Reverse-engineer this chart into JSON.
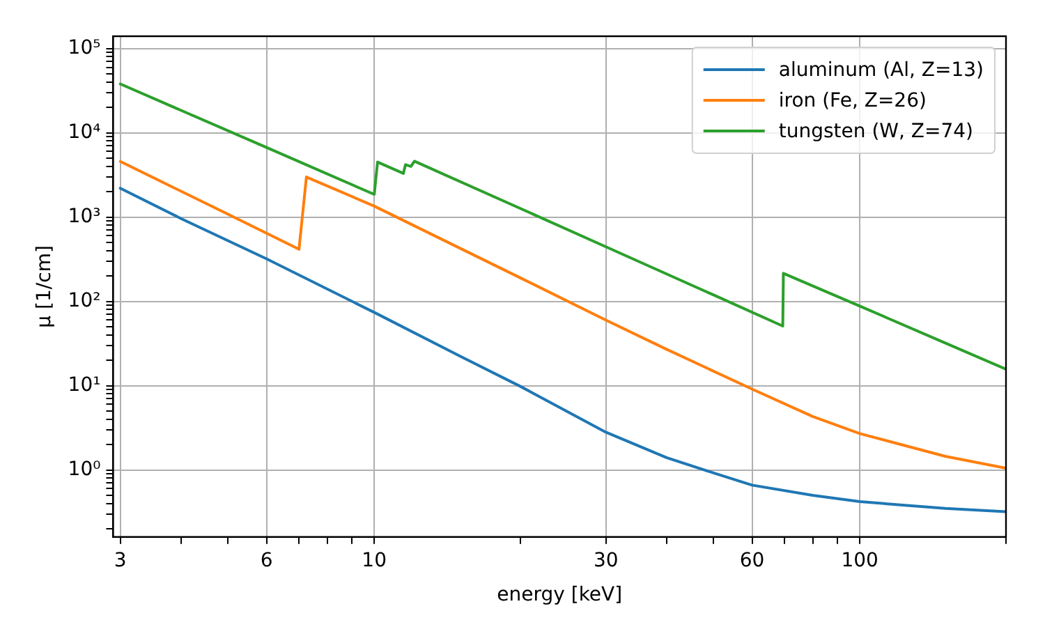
{
  "chart_data": {
    "type": "line",
    "xlabel": "energy [keV]",
    "ylabel": "μ [1/cm]",
    "log": "xy",
    "grid": true,
    "legend": "top right",
    "marker": "none",
    "line_style": "solid",
    "xlim": [
      2.9,
      200
    ],
    "ylim": [
      0.16,
      140000
    ],
    "xticks": [
      3,
      {
        "value": 4,
        "label": null
      },
      {
        "value": 5,
        "label": null
      },
      6,
      {
        "value": 7,
        "label": null
      },
      {
        "value": 8,
        "label": null
      },
      {
        "value": 9,
        "label": null
      },
      10,
      {
        "value": 20,
        "label": null
      },
      30,
      {
        "value": 40,
        "label": null
      },
      {
        "value": 50,
        "label": null
      },
      60,
      {
        "value": 70,
        "label": null
      },
      {
        "value": 80,
        "label": null
      },
      {
        "value": 90,
        "label": null
      },
      100,
      {
        "value": 200,
        "label": null
      }
    ],
    "yticks": [
      {
        "value": 0.2,
        "label": null
      },
      {
        "value": 0.3,
        "label": null
      },
      {
        "value": 0.4,
        "label": null
      },
      {
        "value": 0.5,
        "label": null
      },
      {
        "value": 0.6,
        "label": null
      },
      {
        "value": 0.7,
        "label": null
      },
      {
        "value": 0.8,
        "label": null
      },
      {
        "value": 0.9,
        "label": null
      },
      {
        "value": 1,
        "label": "10⁰"
      },
      {
        "value": 2,
        "label": null
      },
      {
        "value": 3,
        "label": null
      },
      {
        "value": 4,
        "label": null
      },
      {
        "value": 5,
        "label": null
      },
      {
        "value": 6,
        "label": null
      },
      {
        "value": 7,
        "label": null
      },
      {
        "value": 8,
        "label": null
      },
      {
        "value": 9,
        "label": null
      },
      {
        "value": 10,
        "label": "10¹"
      },
      {
        "value": 20,
        "label": null
      },
      {
        "value": 30,
        "label": null
      },
      {
        "value": 40,
        "label": null
      },
      {
        "value": 50,
        "label": null
      },
      {
        "value": 60,
        "label": null
      },
      {
        "value": 70,
        "label": null
      },
      {
        "value": 80,
        "label": null
      },
      {
        "value": 90,
        "label": null
      },
      {
        "value": 100,
        "label": "10²"
      },
      {
        "value": 200,
        "label": null
      },
      {
        "value": 300,
        "label": null
      },
      {
        "value": 400,
        "label": null
      },
      {
        "value": 500,
        "label": null
      },
      {
        "value": 600,
        "label": null
      },
      {
        "value": 700,
        "label": null
      },
      {
        "value": 800,
        "label": null
      },
      {
        "value": 900,
        "label": null
      },
      {
        "value": 1000,
        "label": "10³"
      },
      {
        "value": 2000,
        "label": null
      },
      {
        "value": 3000,
        "label": null
      },
      {
        "value": 4000,
        "label": null
      },
      {
        "value": 5000,
        "label": null
      },
      {
        "value": 6000,
        "label": null
      },
      {
        "value": 7000,
        "label": null
      },
      {
        "value": 8000,
        "label": null
      },
      {
        "value": 9000,
        "label": null
      },
      {
        "value": 10000,
        "label": "10⁴"
      },
      {
        "value": 20000,
        "label": null
      },
      {
        "value": 30000,
        "label": null
      },
      {
        "value": 40000,
        "label": null
      },
      {
        "value": 50000,
        "label": null
      },
      {
        "value": 60000,
        "label": null
      },
      {
        "value": 70000,
        "label": null
      },
      {
        "value": 80000,
        "label": null
      },
      {
        "value": 90000,
        "label": null
      },
      {
        "value": 100000,
        "label": "10⁵"
      }
    ],
    "series": [
      {
        "name": "aluminum (Al, Z=13)",
        "color": "#1f77b4",
        "x": [
          3,
          4,
          6,
          10,
          15,
          20,
          30,
          40,
          50,
          60,
          80,
          100,
          150,
          200
        ],
        "values": [
          2200,
          960,
          320,
          74,
          22.5,
          9.8,
          2.8,
          1.4,
          0.92,
          0.66,
          0.5,
          0.42,
          0.35,
          0.32
        ]
      },
      {
        "name": "iron (Fe, Z=26)",
        "color": "#ff7f0e",
        "x": [
          3,
          5,
          7.0,
          7.25,
          10,
          20,
          30,
          40,
          60,
          80,
          100,
          150,
          200
        ],
        "values": [
          4570,
          1080,
          415,
          2990,
          1350,
          190,
          60,
          27,
          9.1,
          4.3,
          2.7,
          1.45,
          1.05
        ]
      },
      {
        "name": "tungsten (W, Z=74)",
        "color": "#2ca02c",
        "x": [
          3,
          6,
          10,
          10.16,
          11.48,
          11.6,
          11.9,
          12.1,
          20,
          30,
          50,
          69.4,
          69.6,
          100,
          150,
          200
        ],
        "values": [
          38000,
          6700,
          1860,
          4500,
          3300,
          4190,
          4000,
          4600,
          1265,
          444,
          119,
          51,
          215,
          88,
          32,
          15.7
        ]
      }
    ]
  }
}
